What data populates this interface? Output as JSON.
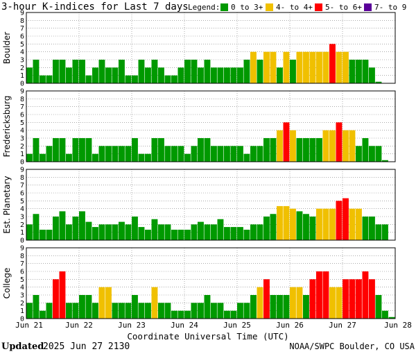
{
  "chart_data": {
    "type": "bar",
    "title": "3-hour K-indices for Last 7 days",
    "legend": {
      "label": "Legend:",
      "placement": "top-right",
      "entries": [
        {
          "label": "0 to 3+",
          "color": "#009900"
        },
        {
          "label": "4- to 4+",
          "color": "#f0c000"
        },
        {
          "label": "5- to 6+",
          "color": "#ff0000"
        },
        {
          "label": "7- to 9",
          "color": "#5a0099"
        }
      ]
    },
    "xlabel": "Coordinate Universal Time (UTC)",
    "x_ticks": [
      "Jun 21",
      "Jun 22",
      "Jun 23",
      "Jun 24",
      "Jun 25",
      "Jun 26",
      "Jun 27",
      "Jun 28"
    ],
    "ylim": [
      0,
      9
    ],
    "y_ticks": [
      0,
      1,
      2,
      3,
      4,
      5,
      6,
      7,
      8,
      9
    ],
    "interval_hours": 3,
    "grid": true,
    "panels": [
      {
        "name": "Boulder",
        "values": [
          2,
          3,
          1,
          1,
          3,
          3,
          2,
          3,
          3,
          1,
          2,
          3,
          2,
          2,
          3,
          1,
          1,
          3,
          2,
          3,
          2,
          1,
          1,
          2,
          3,
          3,
          2,
          3,
          2,
          2,
          2,
          2,
          2,
          3,
          4,
          3,
          4,
          4,
          2,
          4,
          3,
          4,
          4,
          4,
          4,
          4,
          5,
          4,
          4,
          3,
          3,
          3,
          2,
          0.2
        ]
      },
      {
        "name": "Fredericksburg",
        "values": [
          1,
          3,
          1,
          2,
          3,
          3,
          1,
          3,
          3,
          3,
          1,
          2,
          2,
          2,
          2,
          2,
          3,
          1,
          1,
          3,
          3,
          2,
          2,
          2,
          1,
          2,
          3,
          3,
          2,
          2,
          2,
          2,
          2,
          1,
          2,
          2,
          3,
          3,
          4,
          5,
          4,
          3,
          3,
          3,
          3,
          4,
          4,
          5,
          4,
          4,
          2,
          3,
          2,
          2,
          0.2
        ]
      },
      {
        "name": "Est. Planetary",
        "values": [
          2,
          3.33,
          1.33,
          1.33,
          3,
          3.67,
          2,
          3,
          3.67,
          2.33,
          1.67,
          2,
          2,
          2,
          2.33,
          2,
          3,
          1.67,
          1.33,
          2.67,
          2,
          2,
          1.33,
          1.33,
          1.33,
          2,
          2.33,
          2,
          2,
          2.67,
          1.67,
          1.67,
          1.67,
          1.33,
          2,
          2,
          3,
          3.33,
          4.33,
          4.33,
          4,
          3.67,
          3.33,
          3,
          4,
          4,
          4,
          5,
          5.33,
          4,
          4,
          3,
          3,
          2,
          2
        ]
      },
      {
        "name": "College",
        "values": [
          2,
          3,
          1,
          2,
          5,
          6,
          2,
          2,
          3,
          3,
          2,
          4,
          4,
          2,
          2,
          2,
          3,
          2,
          2,
          4,
          2,
          2,
          1,
          1,
          1,
          2,
          2,
          3,
          2,
          2,
          1,
          1,
          2,
          2,
          3,
          4,
          5,
          3,
          3,
          3,
          4,
          4,
          3,
          5,
          6,
          6,
          4,
          4,
          5,
          5,
          5,
          6,
          5,
          3,
          1,
          0.2
        ]
      }
    ]
  },
  "footer": {
    "updated_label": "Updated",
    "updated_value": "2025 Jun 27 2130",
    "source": "NOAA/SWPC Boulder, CO USA"
  }
}
